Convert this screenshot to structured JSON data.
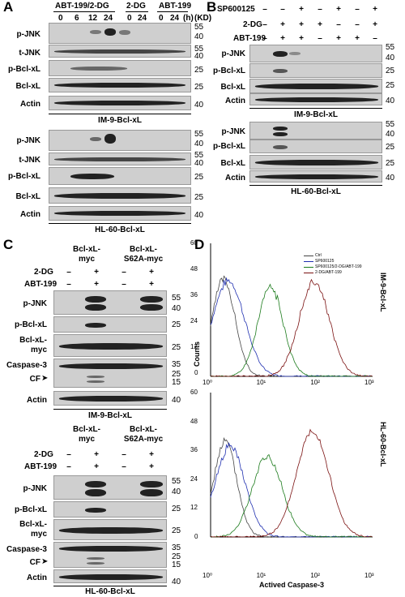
{
  "panelA": {
    "letter": "A",
    "groups": [
      "ABT-199/2-DG",
      "2-DG",
      "ABT-199"
    ],
    "times": [
      "0",
      "6",
      "12",
      "24",
      "0",
      "24",
      "0",
      "24"
    ],
    "time_unit": "(h)",
    "kd_unit": "(KD)",
    "top": {
      "rows": [
        "p-JNK",
        "t-JNK",
        "p-Bcl-xL",
        "Bcl-xL",
        "Actin"
      ],
      "markers": [
        "55",
        "40",
        "55",
        "40",
        "25",
        "25",
        "40"
      ],
      "caption": "IM-9-Bcl-xL"
    },
    "bottom": {
      "rows": [
        "p-JNK",
        "t-JNK",
        "p-Bcl-xL",
        "Bcl-xL",
        "Actin"
      ],
      "markers": [
        "55",
        "40",
        "55",
        "40",
        "25",
        "25",
        "40"
      ],
      "caption": "HL-60-Bcl-xL"
    }
  },
  "panelB": {
    "letter": "B",
    "treatments": [
      {
        "name": "SP600125",
        "signs": [
          "–",
          "–",
          "+",
          "–",
          "+",
          "–",
          "+"
        ]
      },
      {
        "name": "2-DG",
        "signs": [
          "–",
          "+",
          "+",
          "+",
          "–",
          "–",
          "+"
        ]
      },
      {
        "name": "ABT-199",
        "signs": [
          "–",
          "+",
          "+",
          "–",
          "+",
          "+",
          "–"
        ]
      }
    ],
    "top": {
      "rows": [
        "p-JNK",
        "p-Bcl-xL",
        "Bcl-xL",
        "Actin"
      ],
      "markers": [
        "55",
        "40",
        "25",
        "25",
        "40"
      ],
      "caption": "IM-9-Bcl-xL"
    },
    "bottom": {
      "rows": [
        "p-JNK",
        "p-Bcl-xL",
        "Bcl-xL",
        "Actin"
      ],
      "markers": [
        "55",
        "40",
        "25",
        "25",
        "40"
      ],
      "caption": "HL-60-Bcl-xL"
    }
  },
  "panelC": {
    "letter": "C",
    "constructs": [
      [
        "Bcl-xL-",
        "myc"
      ],
      [
        "Bcl-xL-",
        "S62A-myc"
      ]
    ],
    "treatments": [
      {
        "name": "2-DG",
        "signs": [
          "–",
          "+",
          "–",
          "+"
        ]
      },
      {
        "name": "ABT-199",
        "signs": [
          "–",
          "+",
          "–",
          "+"
        ]
      }
    ],
    "top": {
      "rows": [
        "p-JNK",
        "p-Bcl-xL",
        "Bcl-xL-",
        "myc",
        "Caspase-3",
        "CF",
        "Actin"
      ],
      "markers": [
        "55",
        "40",
        "25",
        "25",
        "35",
        "25",
        "15",
        "40"
      ],
      "caption": "IM-9-Bcl-xL"
    },
    "bottom": {
      "rows": [
        "p-JNK",
        "p-Bcl-xL",
        "Bcl-xL-",
        "myc",
        "Caspase-3",
        "CF",
        "Actin"
      ],
      "markers": [
        "55",
        "40",
        "25",
        "25",
        "35",
        "25",
        "15",
        "40"
      ],
      "caption": "HL-60-Bcl-xL"
    }
  },
  "panelD": {
    "letter": "D",
    "ylabel": "Counts",
    "xlabel": "Actived Caspase-3",
    "legend": [
      {
        "name": "Ctrl",
        "color": "#444444"
      },
      {
        "name": "SP600125",
        "color": "#1f2fb0"
      },
      {
        "name": "SP600125/2-DG/ABT-199",
        "color": "#1a7a1a"
      },
      {
        "name": "2-DG/ABT-199",
        "color": "#7a1010"
      }
    ],
    "top": {
      "yticks": [
        "60",
        "48",
        "36",
        "24",
        "12",
        "0"
      ],
      "xticks": [
        "10⁰",
        "10¹",
        "10²",
        "10³"
      ],
      "side": "IM-9-Bcl-xL"
    },
    "bottom": {
      "yticks": [
        "60",
        "48",
        "36",
        "24",
        "12",
        "0"
      ],
      "xticks": [
        "10⁰",
        "10¹",
        "10²",
        "10³"
      ],
      "side": "HL-60-Bcl-xL"
    }
  }
}
